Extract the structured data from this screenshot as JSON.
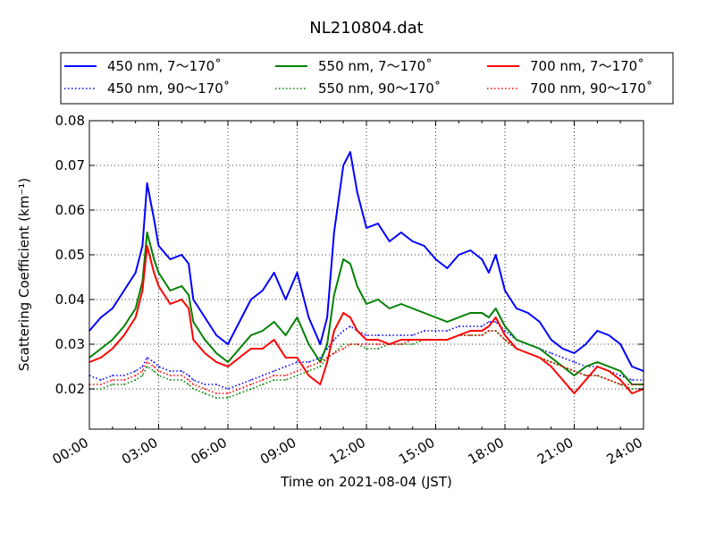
{
  "chart_data": {
    "type": "line",
    "title": "NL210804.dat",
    "xlabel": "Time on 2021-08-04 (JST)",
    "ylabel": "Scattering Coefficient (km⁻¹)",
    "xlim": [
      "00:00",
      "24:00"
    ],
    "ylim": [
      0.011,
      0.08
    ],
    "x_ticks": [
      "00:00",
      "03:00",
      "06:00",
      "09:00",
      "12:00",
      "15:00",
      "18:00",
      "21:00",
      "24:00"
    ],
    "y_ticks": [
      "0.02",
      "0.03",
      "0.04",
      "0.05",
      "0.06",
      "0.07",
      "0.08"
    ],
    "grid": true,
    "legend_position": "top",
    "x_hours": [
      0,
      0.5,
      1,
      1.5,
      2,
      2.3,
      2.5,
      2.8,
      3,
      3.5,
      4,
      4.3,
      4.5,
      5,
      5.5,
      6,
      6.5,
      7,
      7.5,
      8,
      8.5,
      9,
      9.5,
      10,
      10.3,
      10.6,
      11,
      11.3,
      11.6,
      12,
      12.5,
      13,
      13.5,
      14,
      14.5,
      15,
      15.5,
      16,
      16.5,
      17,
      17.3,
      17.6,
      18,
      18.5,
      19,
      19.5,
      20,
      20.5,
      21,
      21.5,
      22,
      22.5,
      23,
      23.5,
      24
    ],
    "series": [
      {
        "name": "450 nm, 7～170˚",
        "color": "#0000ff",
        "style": "solid",
        "values": [
          0.033,
          0.036,
          0.038,
          0.042,
          0.046,
          0.052,
          0.066,
          0.058,
          0.052,
          0.049,
          0.05,
          0.048,
          0.04,
          0.036,
          0.032,
          0.03,
          0.035,
          0.04,
          0.042,
          0.046,
          0.04,
          0.046,
          0.036,
          0.03,
          0.036,
          0.055,
          0.07,
          0.073,
          0.064,
          0.056,
          0.057,
          0.053,
          0.055,
          0.053,
          0.052,
          0.049,
          0.047,
          0.05,
          0.051,
          0.049,
          0.046,
          0.05,
          0.042,
          0.038,
          0.037,
          0.035,
          0.031,
          0.029,
          0.028,
          0.03,
          0.033,
          0.032,
          0.03,
          0.025,
          0.024
        ]
      },
      {
        "name": "450 nm, 90～170˚",
        "color": "#0000ff",
        "style": "dotted",
        "values": [
          0.023,
          0.022,
          0.023,
          0.023,
          0.024,
          0.025,
          0.027,
          0.026,
          0.025,
          0.024,
          0.024,
          0.023,
          0.022,
          0.021,
          0.021,
          0.02,
          0.021,
          0.022,
          0.023,
          0.024,
          0.025,
          0.026,
          0.026,
          0.027,
          0.029,
          0.031,
          0.033,
          0.034,
          0.033,
          0.032,
          0.032,
          0.032,
          0.032,
          0.032,
          0.033,
          0.033,
          0.033,
          0.034,
          0.034,
          0.034,
          0.035,
          0.035,
          0.033,
          0.031,
          0.03,
          0.029,
          0.028,
          0.027,
          0.026,
          0.025,
          0.025,
          0.024,
          0.023,
          0.022,
          0.022
        ]
      },
      {
        "name": "550 nm, 7～170˚",
        "color": "#008000",
        "style": "solid",
        "values": [
          0.027,
          0.029,
          0.031,
          0.034,
          0.038,
          0.044,
          0.055,
          0.049,
          0.046,
          0.042,
          0.043,
          0.041,
          0.035,
          0.031,
          0.028,
          0.026,
          0.029,
          0.032,
          0.033,
          0.035,
          0.032,
          0.036,
          0.03,
          0.026,
          0.03,
          0.041,
          0.049,
          0.048,
          0.043,
          0.039,
          0.04,
          0.038,
          0.039,
          0.038,
          0.037,
          0.036,
          0.035,
          0.036,
          0.037,
          0.037,
          0.036,
          0.038,
          0.034,
          0.031,
          0.03,
          0.029,
          0.027,
          0.025,
          0.023,
          0.025,
          0.026,
          0.025,
          0.024,
          0.021,
          0.021
        ]
      },
      {
        "name": "550 nm, 90～170˚",
        "color": "#008000",
        "style": "dotted",
        "values": [
          0.02,
          0.02,
          0.021,
          0.021,
          0.022,
          0.023,
          0.025,
          0.024,
          0.023,
          0.022,
          0.022,
          0.021,
          0.02,
          0.019,
          0.018,
          0.018,
          0.019,
          0.02,
          0.021,
          0.022,
          0.022,
          0.023,
          0.024,
          0.025,
          0.027,
          0.028,
          0.03,
          0.03,
          0.03,
          0.029,
          0.029,
          0.03,
          0.03,
          0.03,
          0.031,
          0.031,
          0.031,
          0.032,
          0.032,
          0.032,
          0.033,
          0.033,
          0.031,
          0.029,
          0.028,
          0.027,
          0.026,
          0.025,
          0.024,
          0.023,
          0.023,
          0.022,
          0.021,
          0.02,
          0.02
        ]
      },
      {
        "name": "700 nm, 7～170˚",
        "color": "#ff0000",
        "style": "solid",
        "values": [
          0.026,
          0.027,
          0.029,
          0.032,
          0.036,
          0.042,
          0.052,
          0.046,
          0.043,
          0.039,
          0.04,
          0.038,
          0.031,
          0.028,
          0.026,
          0.025,
          0.027,
          0.029,
          0.029,
          0.031,
          0.027,
          0.027,
          0.023,
          0.021,
          0.026,
          0.033,
          0.037,
          0.036,
          0.033,
          0.031,
          0.031,
          0.03,
          0.031,
          0.031,
          0.031,
          0.031,
          0.031,
          0.032,
          0.033,
          0.033,
          0.034,
          0.036,
          0.032,
          0.029,
          0.028,
          0.027,
          0.025,
          0.022,
          0.019,
          0.022,
          0.025,
          0.024,
          0.022,
          0.019,
          0.02
        ]
      },
      {
        "name": "700 nm, 90～170˚",
        "color": "#ff0000",
        "style": "dotted",
        "values": [
          0.021,
          0.021,
          0.022,
          0.022,
          0.023,
          0.024,
          0.026,
          0.025,
          0.024,
          0.023,
          0.023,
          0.022,
          0.021,
          0.02,
          0.019,
          0.019,
          0.02,
          0.021,
          0.022,
          0.023,
          0.023,
          0.024,
          0.025,
          0.026,
          0.027,
          0.028,
          0.029,
          0.03,
          0.03,
          0.03,
          0.03,
          0.03,
          0.03,
          0.031,
          0.031,
          0.031,
          0.031,
          0.032,
          0.032,
          0.032,
          0.033,
          0.033,
          0.031,
          0.029,
          0.028,
          0.027,
          0.026,
          0.025,
          0.024,
          0.023,
          0.023,
          0.022,
          0.021,
          0.021,
          0.021
        ]
      }
    ]
  }
}
